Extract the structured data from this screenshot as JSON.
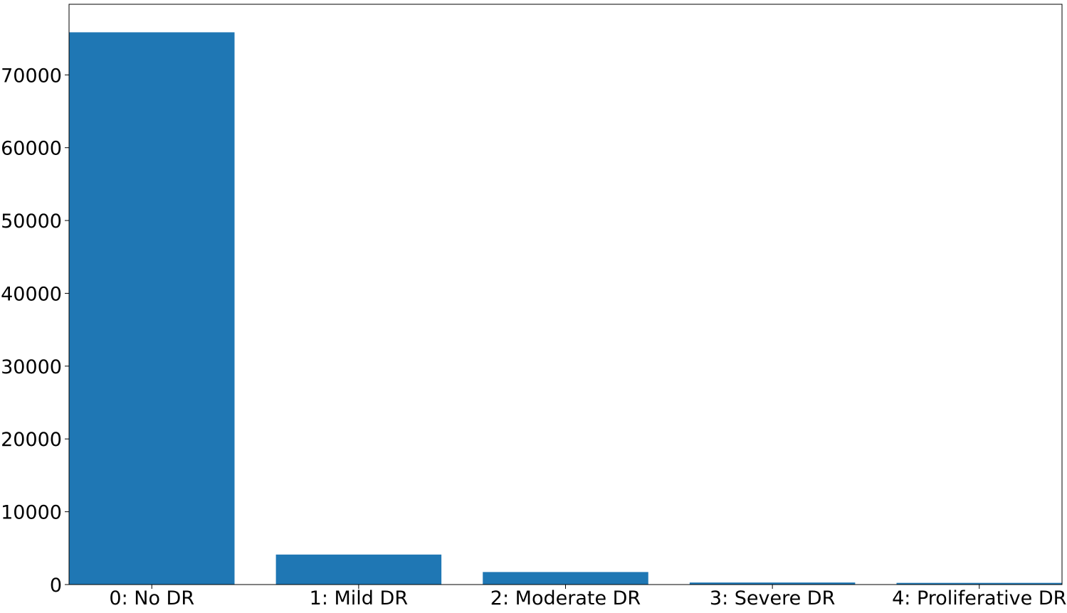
{
  "chart_data": {
    "type": "bar",
    "title": "",
    "xlabel": "",
    "ylabel": "",
    "categories": [
      "0: No DR",
      "1: Mild DR",
      "2: Moderate DR",
      "3: Severe DR",
      "4: Proliferative DR"
    ],
    "values": [
      75850,
      4120,
      1720,
      280,
      230
    ],
    "ylim": [
      0,
      79700
    ],
    "yticks": [
      0,
      10000,
      20000,
      30000,
      40000,
      50000,
      60000,
      70000
    ],
    "bar_color": "#1f77b4",
    "grid": false,
    "legend": "none"
  }
}
